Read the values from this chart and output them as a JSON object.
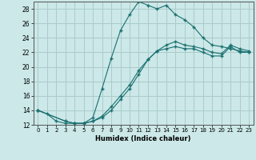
{
  "xlabel": "Humidex (Indice chaleur)",
  "ylabel": "",
  "bg_color": "#cce8e8",
  "grid_color": "#aacccc",
  "line_color": "#1a7070",
  "xlim": [
    -0.5,
    23.5
  ],
  "ylim": [
    12,
    29
  ],
  "xticks": [
    0,
    1,
    2,
    3,
    4,
    5,
    6,
    7,
    8,
    9,
    10,
    11,
    12,
    13,
    14,
    15,
    16,
    17,
    18,
    19,
    20,
    21,
    22,
    23
  ],
  "yticks": [
    12,
    14,
    16,
    18,
    20,
    22,
    24,
    26,
    28
  ],
  "series": [
    {
      "x": [
        0,
        1,
        2,
        3,
        4,
        5,
        6,
        7,
        8,
        9,
        10,
        11,
        12,
        13,
        14,
        15,
        16,
        17,
        18,
        19,
        20,
        21,
        22,
        23
      ],
      "y": [
        14,
        13.5,
        12.5,
        12.2,
        12.2,
        12.2,
        13.0,
        17.0,
        21.2,
        25.0,
        27.2,
        29.0,
        28.5,
        28.0,
        28.5,
        27.2,
        26.5,
        25.5,
        24.0,
        23.0,
        22.8,
        22.5,
        22.2,
        22.0
      ]
    },
    {
      "x": [
        0,
        3,
        4,
        5,
        6,
        7,
        8,
        9,
        10,
        11,
        12,
        13,
        14,
        15,
        16,
        17,
        18,
        19,
        20,
        21,
        22,
        23
      ],
      "y": [
        14,
        12.5,
        12.2,
        12.2,
        12.5,
        13.0,
        14.0,
        15.5,
        17.0,
        19.0,
        21.0,
        22.2,
        22.5,
        22.8,
        22.5,
        22.5,
        22.0,
        21.5,
        21.5,
        22.8,
        22.0,
        22.0
      ]
    },
    {
      "x": [
        0,
        3,
        4,
        5,
        6,
        7,
        8,
        9,
        10,
        11,
        12,
        13,
        14,
        15,
        16,
        17,
        18,
        19,
        20,
        21,
        22,
        23
      ],
      "y": [
        14,
        12.5,
        12.2,
        12.2,
        12.5,
        13.2,
        14.5,
        16.0,
        17.5,
        19.5,
        21.0,
        22.2,
        23.0,
        23.5,
        23.0,
        22.8,
        22.5,
        22.0,
        21.8,
        23.0,
        22.5,
        22.2
      ]
    }
  ]
}
